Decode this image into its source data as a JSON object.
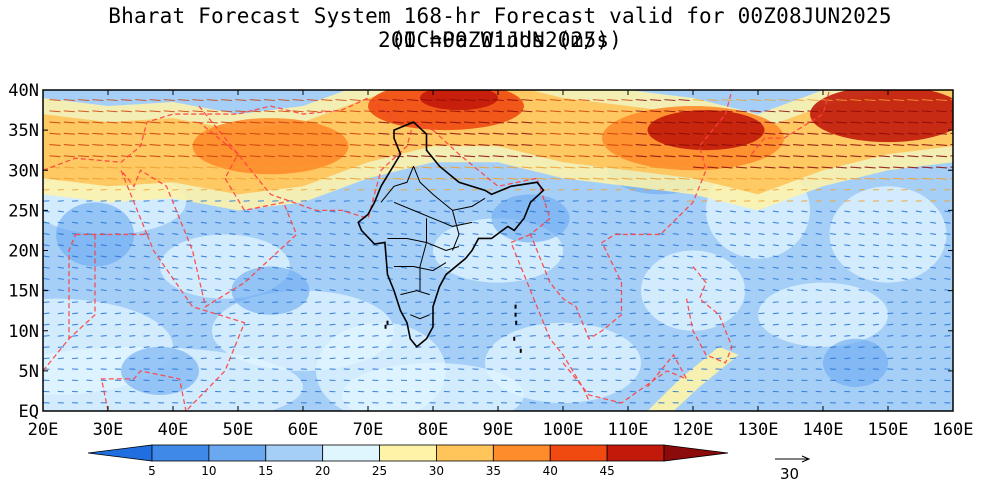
{
  "title_line1": "Bharat Forecast System 168-hr Forecast valid for 00Z08JUN2025 (IC=00Z01JUN2025)",
  "title_line2": "200 hPa Winds (m/s)",
  "map": {
    "lon_range": [
      20,
      160
    ],
    "lat_range": [
      0,
      40
    ],
    "x_tick_labels": [
      "20E",
      "30E",
      "40E",
      "50E",
      "60E",
      "70E",
      "80E",
      "90E",
      "100E",
      "110E",
      "120E",
      "130E",
      "140E",
      "150E",
      "160E"
    ],
    "y_tick_labels": [
      "EQ",
      "5N",
      "10N",
      "15N",
      "20N",
      "25N",
      "30N",
      "35N",
      "40N"
    ],
    "border_color": "#ff4040",
    "india_border_color": "#000000",
    "jet_stream_core_lat": 35
  },
  "colorbar": {
    "levels": [
      "5",
      "10",
      "15",
      "20",
      "25",
      "30",
      "35",
      "40",
      "45"
    ],
    "colors": [
      "#1f6fe0",
      "#3f8ae8",
      "#6aa8f0",
      "#a6cff7",
      "#e0f6ff",
      "#fff3a8",
      "#ffc45a",
      "#ff8c2a",
      "#f04a10",
      "#c21a0a",
      "#8c0a0a"
    ]
  },
  "reference_vector": {
    "label": "30"
  }
}
